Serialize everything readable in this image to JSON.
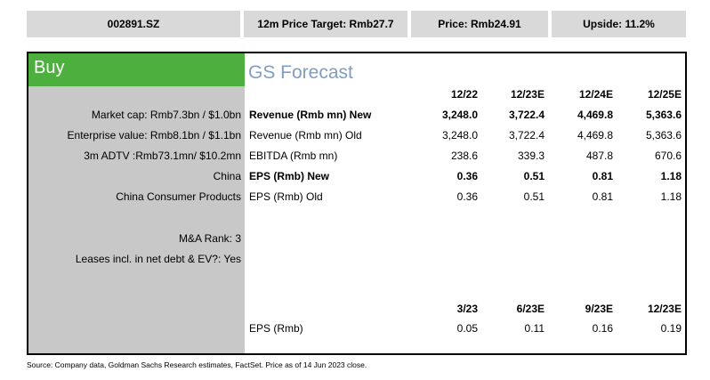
{
  "header": {
    "ticker": "002891.SZ",
    "price_target": "12m Price Target: Rmb27.7",
    "price": "Price: Rmb24.91",
    "upside": "Upside: 11.2%"
  },
  "rating": "Buy",
  "forecast_title": "GS Forecast",
  "stats": [
    "Market cap: Rmb7.3bn / $1.0bn",
    "Enterprise value: Rmb8.1bn / $1.1bn",
    "3m ADTV :Rmb73.1mn/ $10.2mn",
    "China",
    "China Consumer Products",
    "M&A Rank: 3",
    "Leases incl. in net debt & EV?: Yes"
  ],
  "annual": {
    "columns": [
      "12/22",
      "12/23E",
      "12/24E",
      "12/25E"
    ],
    "rows": [
      {
        "label": "Revenue (Rmb mn) New",
        "values": [
          "3,248.0",
          "3,722.4",
          "4,469.8",
          "5,363.6"
        ]
      },
      {
        "label": "Revenue (Rmb mn) Old",
        "values": [
          "3,248.0",
          "3,722.4",
          "4,469.8",
          "5,363.6"
        ]
      },
      {
        "label": "EBITDA (Rmb mn)",
        "values": [
          "238.6",
          "339.3",
          "487.8",
          "670.6"
        ]
      },
      {
        "label": "EPS (Rmb) New",
        "values": [
          "0.36",
          "0.51",
          "0.81",
          "1.18"
        ]
      },
      {
        "label": "EPS (Rmb) Old",
        "values": [
          "0.36",
          "0.51",
          "0.81",
          "1.18"
        ]
      }
    ]
  },
  "quarterly": {
    "columns": [
      "3/23",
      "6/23E",
      "9/23E",
      "12/23E"
    ],
    "rows": [
      {
        "label": "EPS (Rmb)",
        "values": [
          "0.05",
          "0.11",
          "0.16",
          "0.19"
        ]
      }
    ]
  },
  "source": "Source: Company data, Goldman Sachs Research estimates, FactSet. Price as of 14 Jun 2023 close."
}
